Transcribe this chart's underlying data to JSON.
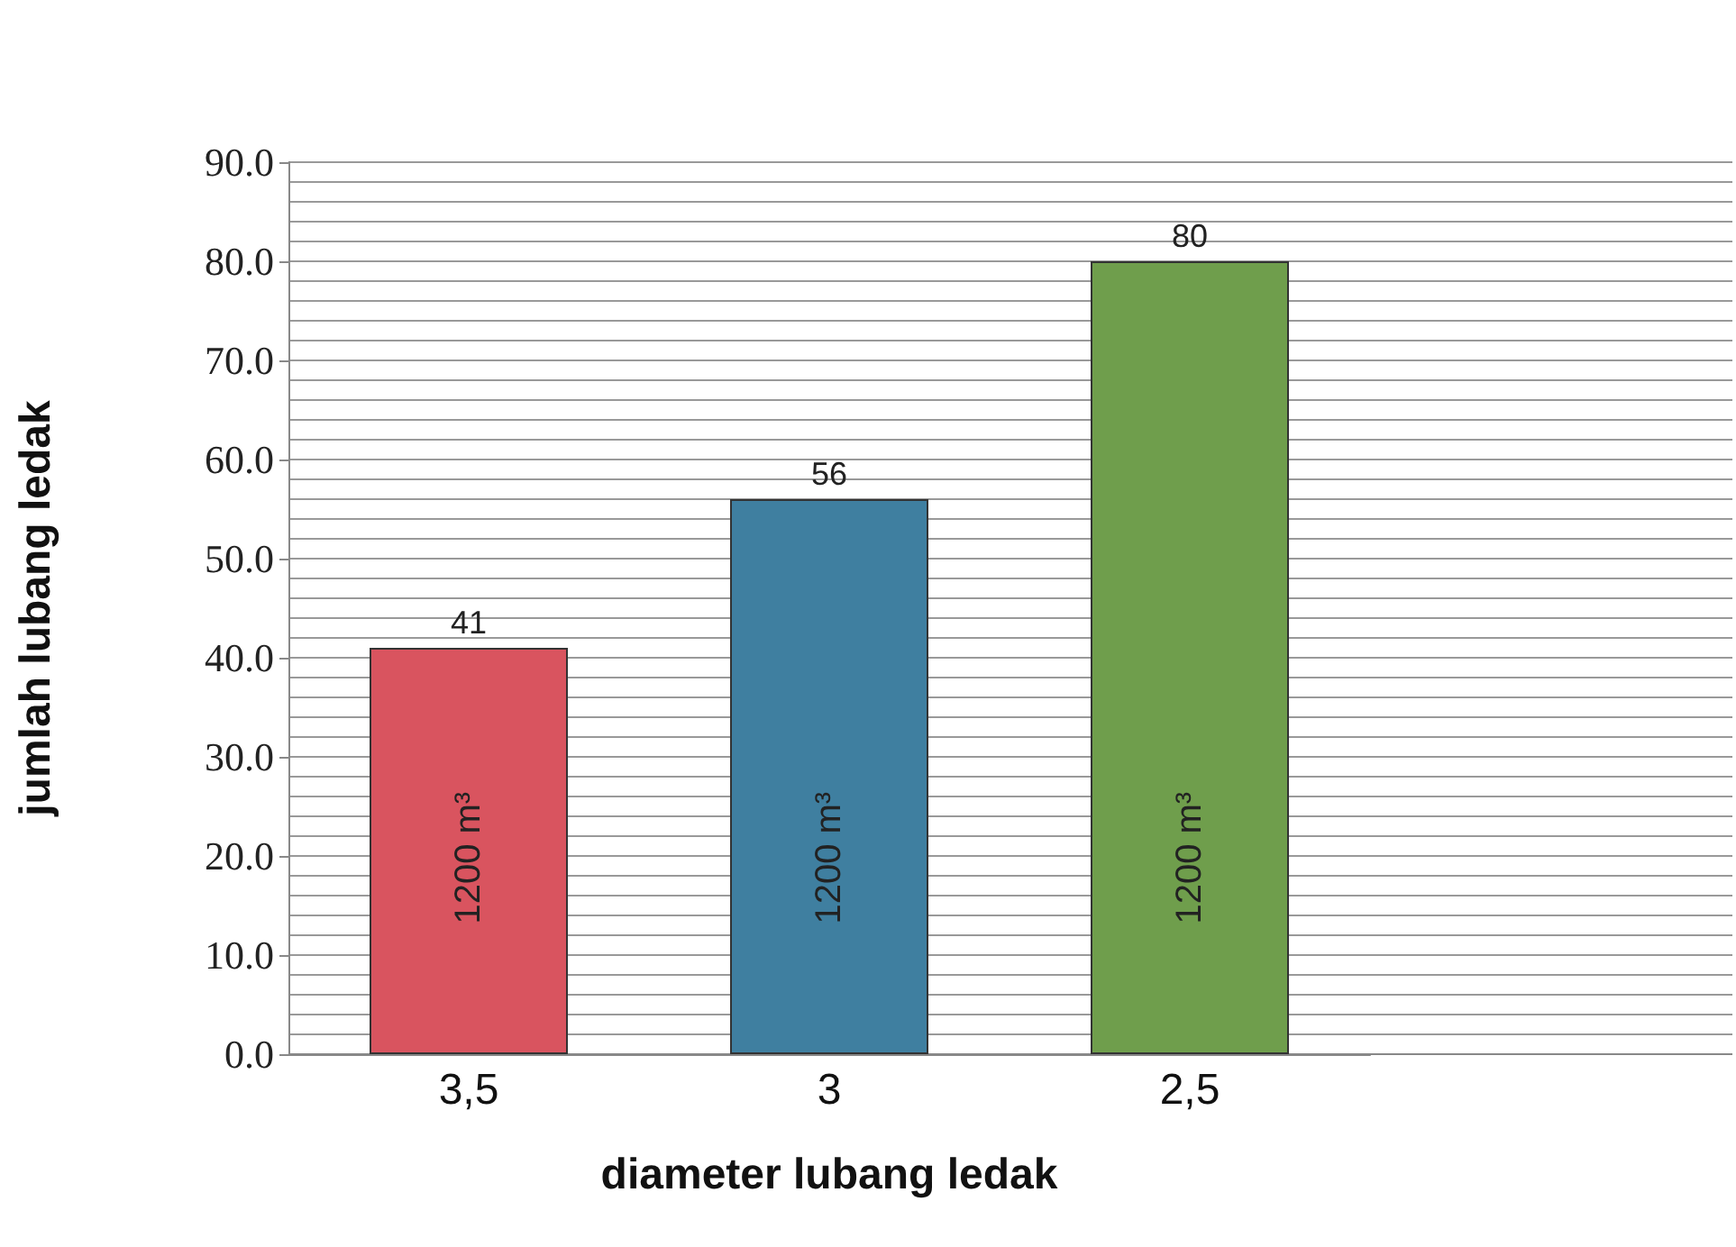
{
  "chart_data": {
    "type": "bar",
    "xlabel": "diameter lubang ledak",
    "ylabel": "jumlah lubang ledak",
    "categories": [
      "3,5",
      "3",
      "2,5"
    ],
    "values": [
      41,
      56,
      80
    ],
    "colors": [
      "#d9545f",
      "#3f7fa0",
      "#6f9e4c"
    ],
    "data_labels": true,
    "ylim": [
      0,
      90
    ],
    "yticks": [
      {
        "value": 0,
        "label": "0.0"
      },
      {
        "value": 2,
        "label": null
      },
      {
        "value": 4,
        "label": null
      },
      {
        "value": 6,
        "label": null
      },
      {
        "value": 8,
        "label": null
      },
      {
        "value": 10,
        "label": "10.0"
      },
      {
        "value": 12,
        "label": null
      },
      {
        "value": 14,
        "label": null
      },
      {
        "value": 16,
        "label": null
      },
      {
        "value": 18,
        "label": null
      },
      {
        "value": 20,
        "label": "20.0"
      },
      {
        "value": 22,
        "label": null
      },
      {
        "value": 24,
        "label": null
      },
      {
        "value": 26,
        "label": null
      },
      {
        "value": 28,
        "label": null
      },
      {
        "value": 30,
        "label": "30.0"
      },
      {
        "value": 32,
        "label": null
      },
      {
        "value": 34,
        "label": null
      },
      {
        "value": 36,
        "label": null
      },
      {
        "value": 38,
        "label": null
      },
      {
        "value": 40,
        "label": "40.0"
      },
      {
        "value": 42,
        "label": null
      },
      {
        "value": 44,
        "label": null
      },
      {
        "value": 46,
        "label": null
      },
      {
        "value": 48,
        "label": null
      },
      {
        "value": 50,
        "label": "50.0"
      },
      {
        "value": 52,
        "label": null
      },
      {
        "value": 54,
        "label": null
      },
      {
        "value": 56,
        "label": null
      },
      {
        "value": 58,
        "label": null
      },
      {
        "value": 60,
        "label": "60.0"
      },
      {
        "value": 62,
        "label": null
      },
      {
        "value": 64,
        "label": null
      },
      {
        "value": 66,
        "label": null
      },
      {
        "value": 68,
        "label": null
      },
      {
        "value": 70,
        "label": "70.0"
      },
      {
        "value": 72,
        "label": null
      },
      {
        "value": 74,
        "label": null
      },
      {
        "value": 76,
        "label": null
      },
      {
        "value": 78,
        "label": null
      },
      {
        "value": 80,
        "label": "80.0"
      },
      {
        "value": 82,
        "label": null
      },
      {
        "value": 84,
        "label": null
      },
      {
        "value": 86,
        "label": null
      },
      {
        "value": 88,
        "label": null
      },
      {
        "value": 90,
        "label": "90.0"
      }
    ],
    "grid": "y",
    "annotations": [
      "1200 m³",
      "1200 m³",
      "1200 m³"
    ]
  }
}
